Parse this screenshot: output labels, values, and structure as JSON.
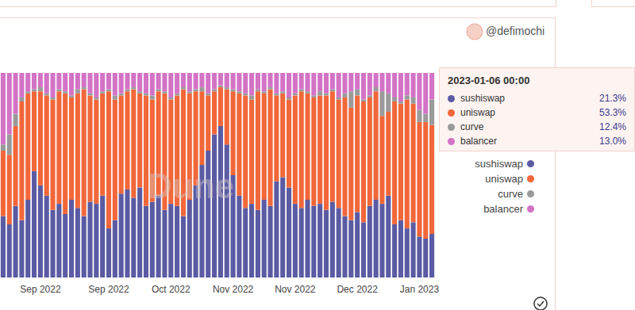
{
  "chart_data": {
    "type": "bar",
    "stacked": true,
    "legend": "right",
    "grid": false,
    "tick_labels": "x",
    "credit": "@defimochi",
    "watermark": "Dune",
    "categories": [
      null,
      null,
      null,
      null,
      null,
      null,
      "Sep 2022",
      null,
      null,
      null,
      null,
      null,
      null,
      null,
      null,
      null,
      null,
      "Sep 2022",
      null,
      null,
      null,
      null,
      null,
      null,
      null,
      null,
      null,
      "Oct 2022",
      null,
      null,
      null,
      null,
      null,
      null,
      null,
      null,
      null,
      "Nov 2022",
      null,
      null,
      null,
      null,
      null,
      null,
      null,
      null,
      null,
      "Nov 2022",
      null,
      null,
      null,
      null,
      null,
      null,
      null,
      null,
      null,
      "Dec 2022",
      null,
      null,
      null,
      null,
      null,
      null,
      null,
      null,
      null,
      "Jan 2023",
      null,
      null
    ],
    "ylim": [
      0,
      100
    ],
    "yticks": [
      0,
      100
    ],
    "series": [
      {
        "name": "sushiswap",
        "color": "#5b5ba3",
        "values": [
          30,
          26,
          35,
          28,
          38,
          52,
          45,
          40,
          33,
          36,
          31,
          38,
          34,
          30,
          37,
          36,
          40,
          24,
          28,
          41,
          43,
          39,
          44,
          35,
          37,
          40,
          33,
          36,
          35,
          30,
          38,
          45,
          55,
          62,
          70,
          74,
          65,
          50,
          40,
          34,
          36,
          33,
          38,
          35,
          47,
          49,
          44,
          36,
          34,
          38,
          35,
          36,
          33,
          37,
          34,
          30,
          28,
          32,
          27,
          35,
          38,
          36,
          40,
          26,
          28,
          24,
          27,
          20,
          19,
          21.3
        ]
      },
      {
        "name": "uniswap",
        "color": "#f2673a",
        "values": [
          32,
          34,
          39,
          58,
          52,
          39,
          46,
          49,
          54,
          55,
          59,
          50,
          56,
          62,
          52,
          51,
          50,
          67,
          59,
          48,
          48,
          53,
          46,
          54,
          50,
          51,
          57,
          51,
          54,
          62,
          52,
          46,
          36,
          27,
          21,
          19,
          27,
          41,
          50,
          55,
          51,
          58,
          52,
          57,
          42,
          41,
          43,
          53,
          57,
          52,
          53,
          53,
          56,
          54,
          53,
          58,
          55,
          57,
          59,
          53,
          53,
          43,
          41,
          60,
          57,
          63,
          58,
          56,
          57,
          53.3
        ]
      },
      {
        "name": "curve",
        "color": "#9a9a9a",
        "values": [
          3,
          10,
          6,
          2,
          1,
          1,
          2,
          1,
          1,
          1,
          1,
          1,
          2,
          1,
          1,
          1,
          1,
          1,
          2,
          1,
          1,
          1,
          1,
          1,
          2,
          1,
          1,
          1,
          1,
          1,
          1,
          1,
          2,
          1,
          1,
          1,
          1,
          1,
          1,
          1,
          2,
          1,
          1,
          1,
          1,
          1,
          1,
          1,
          1,
          1,
          1,
          2,
          1,
          1,
          1,
          2,
          8,
          3,
          1,
          1,
          2,
          12,
          9,
          2,
          1,
          2,
          3,
          6,
          4,
          12.4
        ]
      },
      {
        "name": "balancer",
        "color": "#d373c6",
        "values": [
          35,
          30,
          20,
          12,
          9,
          8,
          7,
          10,
          12,
          8,
          9,
          11,
          8,
          7,
          10,
          12,
          9,
          8,
          11,
          10,
          8,
          7,
          9,
          10,
          11,
          8,
          9,
          12,
          10,
          7,
          9,
          8,
          7,
          10,
          8,
          6,
          7,
          8,
          9,
          10,
          11,
          8,
          9,
          7,
          10,
          9,
          12,
          10,
          8,
          9,
          11,
          9,
          10,
          8,
          12,
          10,
          9,
          8,
          13,
          11,
          7,
          9,
          10,
          12,
          14,
          11,
          12,
          18,
          20,
          13.0
        ]
      }
    ],
    "tooltip": {
      "title": "2023-01-06 00:00",
      "rows": [
        {
          "name": "sushiswap",
          "value": "21.3%"
        },
        {
          "name": "uniswap",
          "value": "53.3%"
        },
        {
          "name": "curve",
          "value": "12.4%"
        },
        {
          "name": "balancer",
          "value": "13.0%"
        }
      ]
    }
  }
}
